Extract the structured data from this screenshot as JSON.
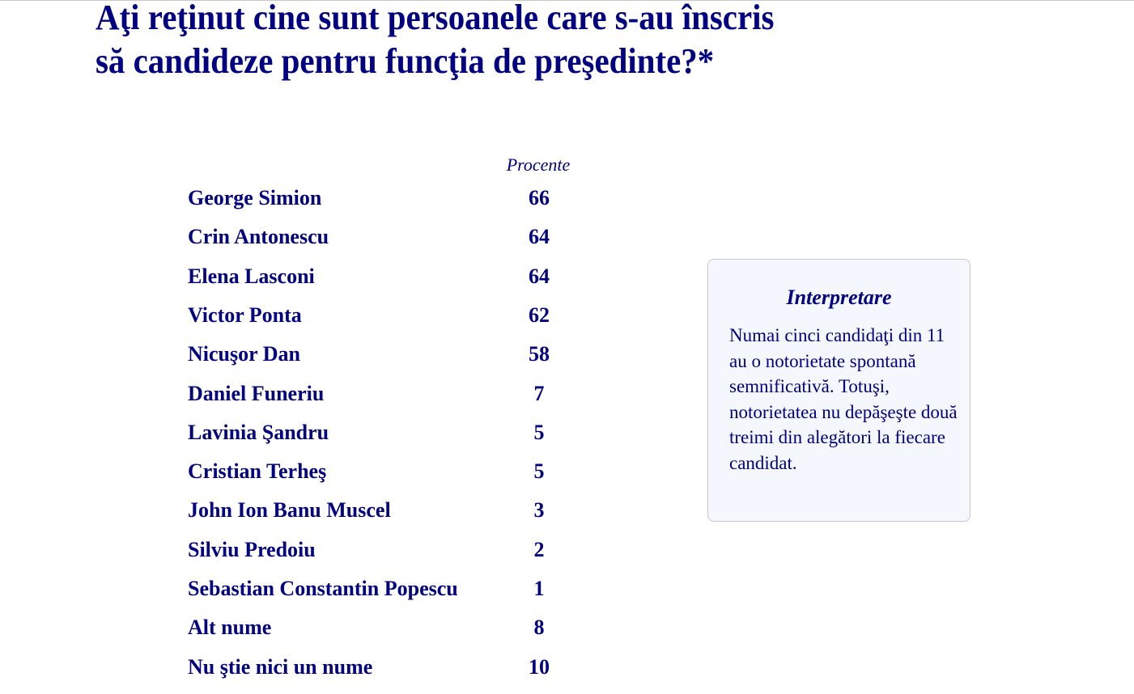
{
  "title_line1": "Aţi reţinut cine sunt persoanele care s-au înscris",
  "title_line2": "să candideze pentru funcţia de preşedinte?*",
  "column_header": "Procente",
  "rows": [
    {
      "name": "George Simion",
      "value": "66"
    },
    {
      "name": "Crin Antonescu",
      "value": "64"
    },
    {
      "name": "Elena Lasconi",
      "value": "64"
    },
    {
      "name": "Victor Ponta",
      "value": "62"
    },
    {
      "name": "Nicuşor Dan",
      "value": "58"
    },
    {
      "name": "Daniel Funeriu",
      "value": "7"
    },
    {
      "name": "Lavinia Şandru",
      "value": "5"
    },
    {
      "name": "Cristian Terheş",
      "value": "5"
    },
    {
      "name": "John Ion Banu Muscel",
      "value": "3"
    },
    {
      "name": "Silviu Predoiu",
      "value": "2"
    },
    {
      "name": "Sebastian Constantin Popescu",
      "value": "1"
    },
    {
      "name": "Alt nume",
      "value": "8"
    },
    {
      "name": "Nu ştie nici un nume",
      "value": "10"
    }
  ],
  "interpretation": {
    "heading": "Interpretare",
    "text": "Numai cinci candidaţi din 11 au o notorietate spontană semnificativă. Totuşi, notorietatea nu depăşeşte două treimi din alegători la fiecare candidat."
  },
  "colors": {
    "text": "#000080",
    "box_bg": "#f4f8fe",
    "box_border": "#c8c8c8"
  }
}
